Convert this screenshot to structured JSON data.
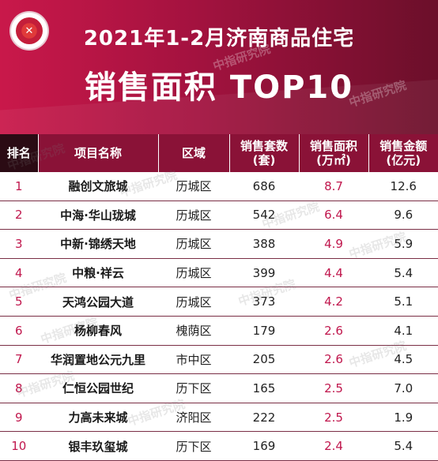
{
  "header": {
    "logo_text": "",
    "title_line1": "2021年1-2月济南商品住宅",
    "title_line2": "销售面积 TOP10"
  },
  "watermark": "中指研究院",
  "colors": {
    "banner_start": "#c9184a",
    "banner_end": "#6b0f2a",
    "header_cell": "#8a1237",
    "rank_header": "#2b0b14",
    "accent_text": "#c0174d"
  },
  "table": {
    "columns": [
      "排名",
      "项目名称",
      "区域",
      "销售套数\n(套)",
      "销售面积\n(万㎡)",
      "销售金额\n(亿元)"
    ],
    "rows": [
      {
        "rank": "1",
        "name": "融创文旅城",
        "district": "历城区",
        "units": "686",
        "area": "8.7",
        "amount": "12.6"
      },
      {
        "rank": "2",
        "name": "中海·华山珑城",
        "district": "历城区",
        "units": "542",
        "area": "6.4",
        "amount": "9.6"
      },
      {
        "rank": "3",
        "name": "中新·锦绣天地",
        "district": "历城区",
        "units": "388",
        "area": "4.9",
        "amount": "5.9"
      },
      {
        "rank": "4",
        "name": "中粮·祥云",
        "district": "历城区",
        "units": "399",
        "area": "4.4",
        "amount": "5.4"
      },
      {
        "rank": "5",
        "name": "天鸿公园大道",
        "district": "历城区",
        "units": "373",
        "area": "4.2",
        "amount": "5.1"
      },
      {
        "rank": "6",
        "name": "杨柳春风",
        "district": "槐荫区",
        "units": "179",
        "area": "2.6",
        "amount": "4.1"
      },
      {
        "rank": "7",
        "name": "华润置地公元九里",
        "district": "市中区",
        "units": "205",
        "area": "2.6",
        "amount": "4.5"
      },
      {
        "rank": "8",
        "name": "仁恒公园世纪",
        "district": "历下区",
        "units": "165",
        "area": "2.5",
        "amount": "7.0"
      },
      {
        "rank": "9",
        "name": "力高未来城",
        "district": "济阳区",
        "units": "222",
        "area": "2.5",
        "amount": "1.9"
      },
      {
        "rank": "10",
        "name": "银丰玖玺城",
        "district": "历下区",
        "units": "169",
        "area": "2.4",
        "amount": "5.4"
      }
    ]
  }
}
